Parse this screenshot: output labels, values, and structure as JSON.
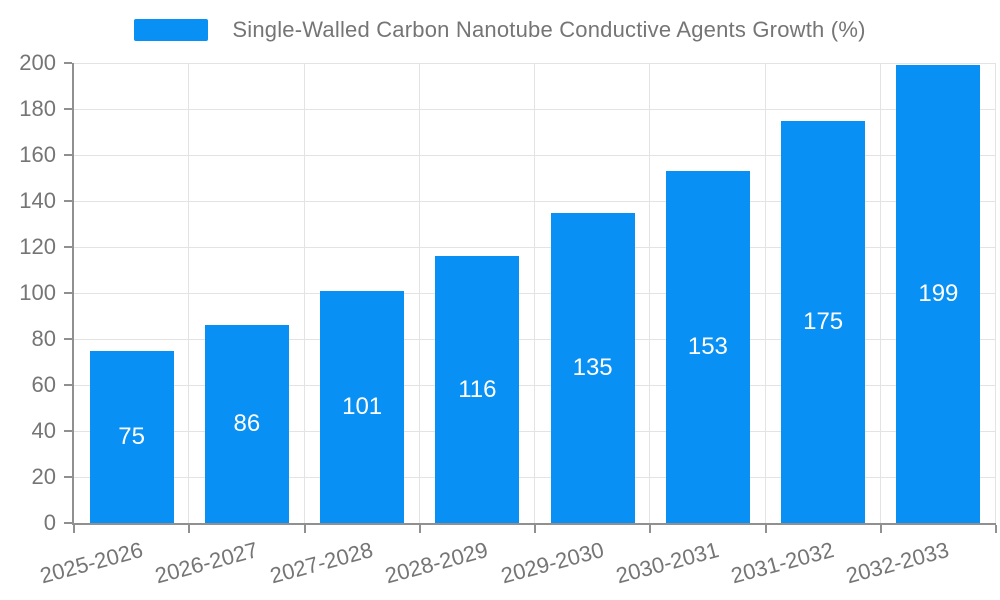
{
  "legend": {
    "label": "Single-Walled Carbon Nanotube Conductive Agents Growth (%)"
  },
  "chart_data": {
    "type": "bar",
    "title": "Single-Walled Carbon Nanotube Conductive Agents Growth (%)",
    "categories": [
      "2025-2026",
      "2026-2027",
      "2027-2028",
      "2028-2029",
      "2029-2030",
      "2030-2031",
      "2031-2032",
      "2032-2033"
    ],
    "values": [
      75,
      86,
      101,
      116,
      135,
      153,
      175,
      199
    ],
    "xlabel": "",
    "ylabel": "",
    "ylim": [
      0,
      200
    ],
    "ytick_step": 20,
    "yticks": [
      0,
      20,
      40,
      60,
      80,
      100,
      120,
      140,
      160,
      180,
      200
    ],
    "grid": true,
    "legend_position": "top-center",
    "bar_labels_inside": true,
    "colors": {
      "bar": "#0890f4",
      "bar_label": "#ffffff",
      "axis_line": "#909090",
      "gridline": "#e3e3e3",
      "text": "#757575",
      "background": "#ffffff"
    }
  }
}
